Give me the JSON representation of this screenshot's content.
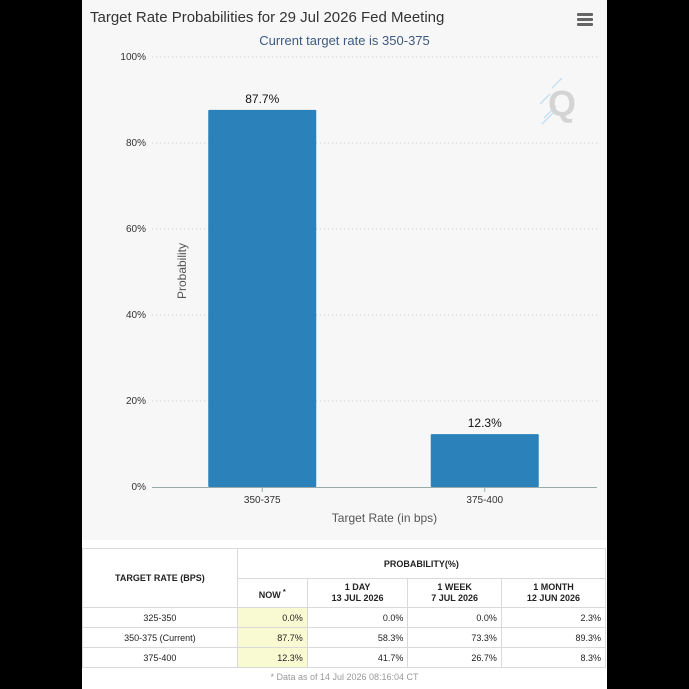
{
  "chart_data": {
    "type": "bar",
    "title": "Target Rate Probabilities for 29 Jul 2026 Fed Meeting",
    "subtitle": "Current target rate is 350-375",
    "categories": [
      "350-375",
      "375-400"
    ],
    "values": [
      87.7,
      12.3
    ],
    "value_labels": [
      "87.7%",
      "12.3%"
    ],
    "xlabel": "Target Rate (in bps)",
    "ylabel": "Probability",
    "ylim": [
      0,
      100
    ],
    "yticks": [
      0,
      20,
      40,
      60,
      80,
      100
    ],
    "ytick_labels": [
      "0%",
      "20%",
      "40%",
      "60%",
      "80%",
      "100%"
    ],
    "grid": true,
    "bar_color": "#2b82ba"
  },
  "menu": {
    "icon": "hamburger-menu-icon"
  },
  "logo": {
    "icon": "q-logo-icon",
    "letter": "Q"
  },
  "table": {
    "header_target": "TARGET RATE (BPS)",
    "header_probability": "PROBABILITY(%)",
    "columns": [
      {
        "line1": "NOW",
        "line2": "",
        "mark": "*"
      },
      {
        "line1": "1 DAY",
        "line2": "13 JUL 2026",
        "mark": ""
      },
      {
        "line1": "1 WEEK",
        "line2": "7 JUL 2026",
        "mark": ""
      },
      {
        "line1": "1 MONTH",
        "line2": "12 JUN 2026",
        "mark": ""
      }
    ],
    "rows": [
      {
        "rate": "325-350",
        "values": [
          "0.0%",
          "0.0%",
          "0.0%",
          "2.3%"
        ]
      },
      {
        "rate": "350-375 (Current)",
        "values": [
          "87.7%",
          "58.3%",
          "73.3%",
          "89.3%"
        ]
      },
      {
        "rate": "375-400",
        "values": [
          "12.3%",
          "41.7%",
          "26.7%",
          "8.3%"
        ]
      }
    ],
    "footnote": "* Data as of 14 Jul 2026 08:16:04 CT"
  }
}
